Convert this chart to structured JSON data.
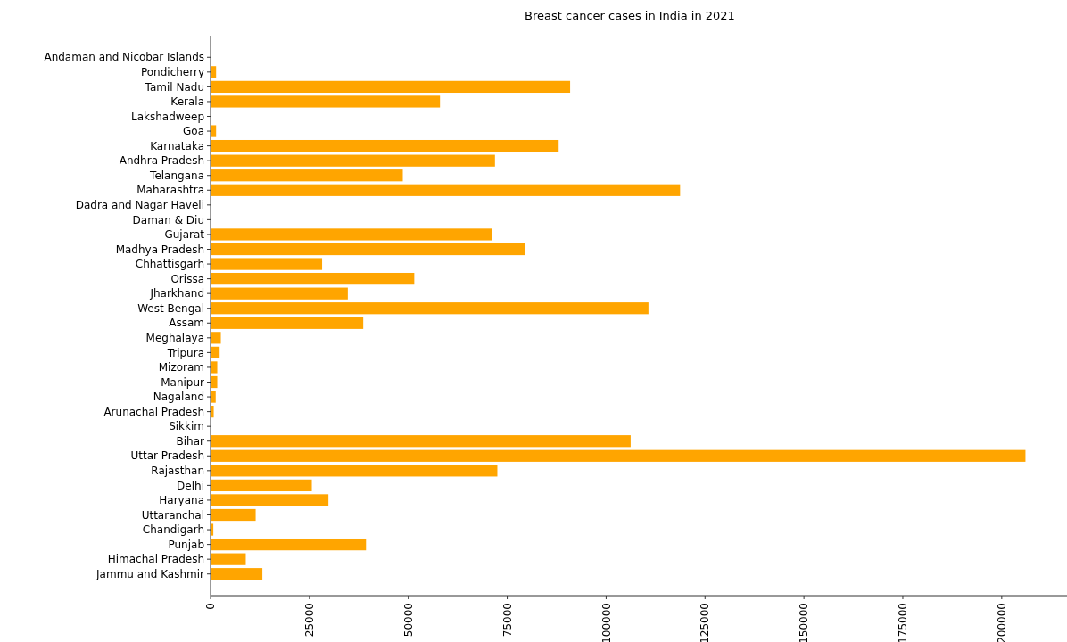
{
  "chart_data": {
    "type": "bar",
    "orientation": "horizontal",
    "title": "Breast cancer cases in India in 2021",
    "categories": [
      "Andaman and Nicobar Islands",
      "Pondicherry",
      "Tamil Nadu",
      "Kerala",
      "Lakshadweep",
      "Goa",
      "Karnataka",
      "Andhra Pradesh",
      "Telangana",
      "Maharashtra",
      "Dadra and Nagar Haveli",
      "Daman & Diu",
      "Gujarat",
      "Madhya Pradesh",
      "Chhattisgarh",
      "Orissa",
      "Jharkhand",
      "West Bengal",
      "Assam",
      "Meghalaya",
      "Tripura",
      "Mizoram",
      "Manipur",
      "Nagaland",
      "Arunachal Pradesh",
      "Sikkim",
      "Bihar",
      "Uttar Pradesh",
      "Rajasthan",
      "Delhi",
      "Haryana",
      "Uttaranchal",
      "Chandigarh",
      "Punjab",
      "Himachal Pradesh",
      "Jammu and Kashmir"
    ],
    "values": [
      0,
      1400,
      90900,
      58000,
      0,
      1400,
      88000,
      71900,
      48600,
      118700,
      0,
      0,
      71200,
      79600,
      28200,
      51500,
      34700,
      110700,
      38600,
      2600,
      2300,
      1700,
      1700,
      1300,
      800,
      0,
      106200,
      206000,
      72500,
      25600,
      29800,
      11400,
      700,
      39300,
      8900,
      13100
    ],
    "color": "#ffa500",
    "xlim": [
      0,
      216500
    ],
    "xticks": [
      0,
      25000,
      50000,
      75000,
      100000,
      125000,
      150000,
      175000,
      200000
    ],
    "grid": false
  }
}
